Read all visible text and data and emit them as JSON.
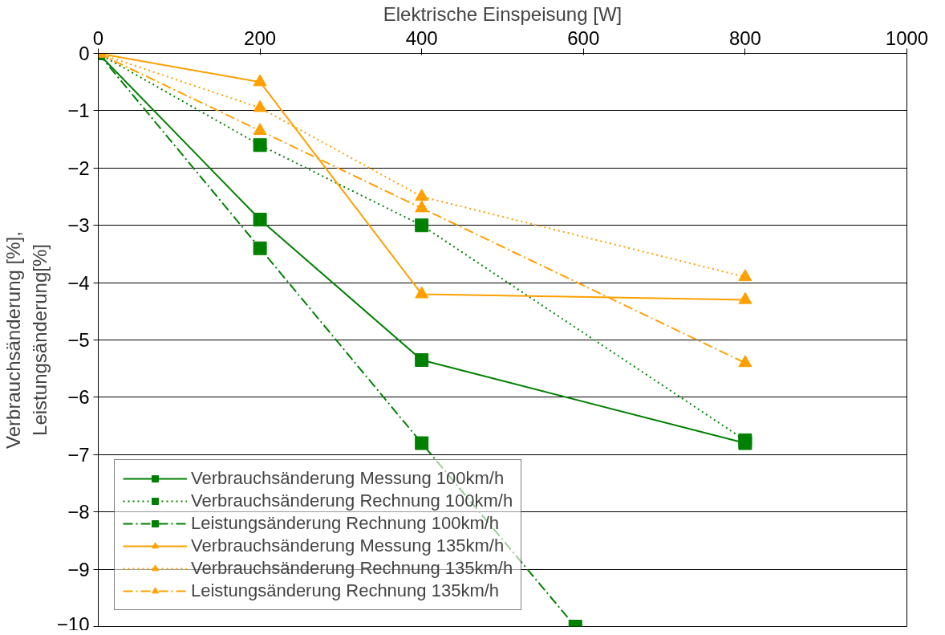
{
  "chart_data": {
    "type": "line",
    "xlabel": "Elektrische Einspeisung [W]",
    "ylabel": "Verbrauchsänderung [%],\nLeistungsänderung[%]",
    "x": [
      0,
      200,
      400,
      800
    ],
    "xlim": [
      0,
      1000
    ],
    "xticks": [
      0,
      200,
      400,
      600,
      800,
      1000
    ],
    "ylim": [
      -10,
      0
    ],
    "yticks": [
      0,
      -1,
      -2,
      -3,
      -4,
      -5,
      -6,
      -7,
      -8,
      -9,
      -10
    ],
    "grid": "y",
    "legend": "bottom left",
    "series": [
      {
        "name": "Verbrauchsänderung Messung 100km/h",
        "color": "#008000",
        "marker": "square",
        "line_style": "solid",
        "values": [
          0,
          -2.9,
          -5.35,
          -6.8
        ]
      },
      {
        "name": "Verbrauchsänderung Rechnung 100km/h",
        "color": "#008000",
        "marker": "square",
        "line_style": "dotted",
        "values": [
          0,
          -1.6,
          -3.0,
          -6.75
        ]
      },
      {
        "name": "Leistungsänderung Rechnung 100km/h",
        "color": "#008000",
        "marker": "square",
        "line_style": "dashdot",
        "x": [
          0,
          200,
          400,
          590
        ],
        "values": [
          0,
          -3.4,
          -6.8,
          -10
        ]
      },
      {
        "name": "Verbrauchsänderung Messung 135km/h",
        "color": "#ffa000",
        "marker": "triangle",
        "line_style": "solid",
        "values": [
          0,
          -0.5,
          -4.2,
          -4.3
        ]
      },
      {
        "name": "Verbrauchsänderung Rechnung 135km/h",
        "color": "#ffa000",
        "marker": "triangle",
        "line_style": "dotted",
        "values": [
          0,
          -0.95,
          -2.5,
          -3.9
        ]
      },
      {
        "name": "Leistungsänderung Rechnung 135km/h",
        "color": "#ffa000",
        "marker": "triangle",
        "line_style": "dashdot",
        "values": [
          0,
          -1.35,
          -2.7,
          -5.4
        ]
      }
    ]
  }
}
